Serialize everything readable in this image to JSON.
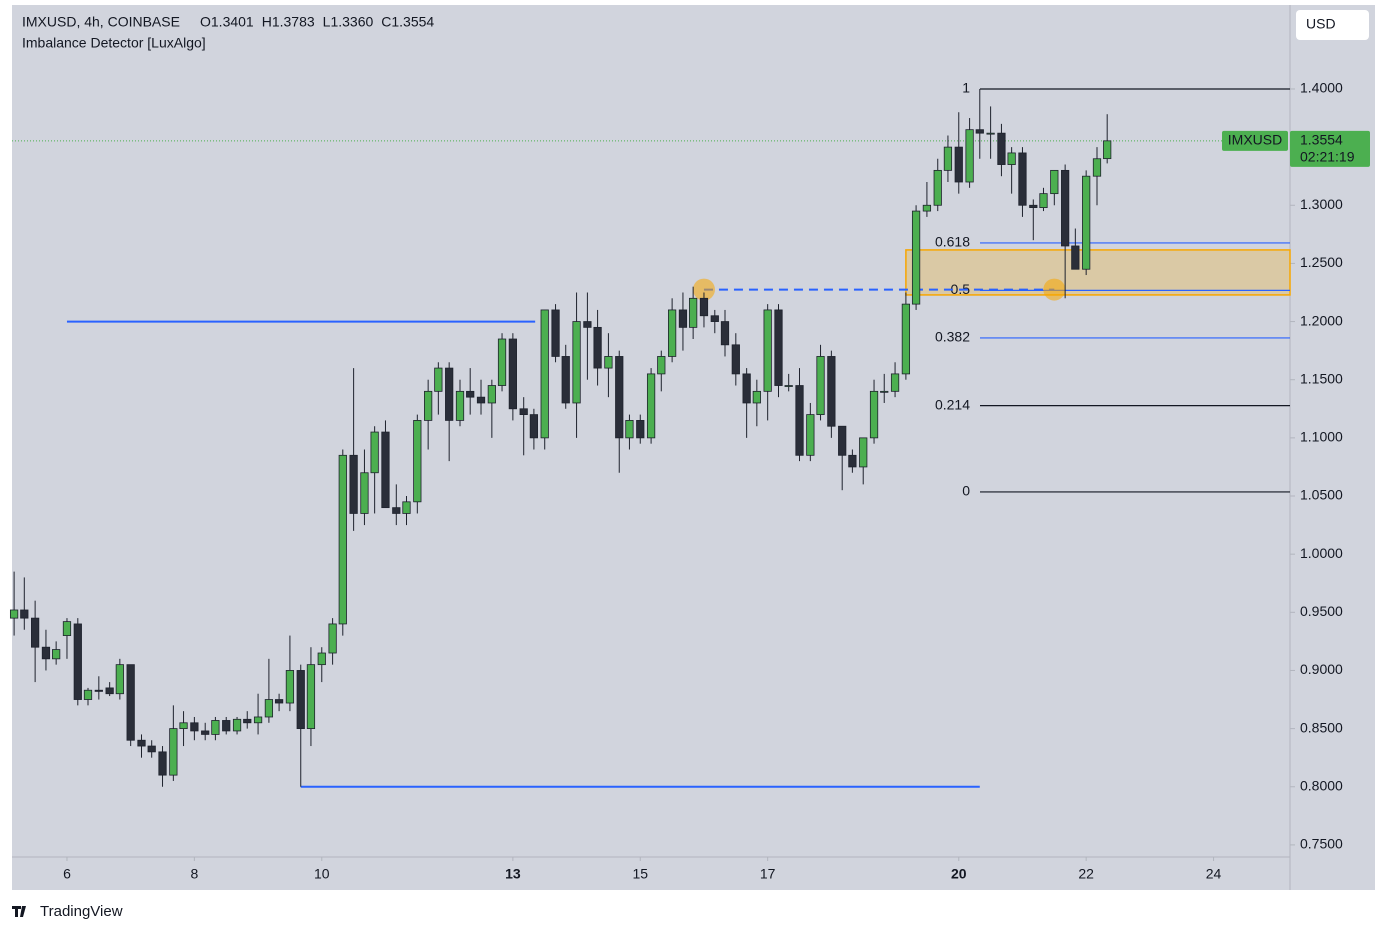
{
  "chart_data": {
    "type": "candlestick",
    "header": {
      "symbol": "IMXUSD, 4h, COINBASE",
      "ohlc": [
        "O1.3401",
        "H1.3783",
        "L1.3360",
        "C1.3554"
      ],
      "indicator": "Imbalance Detector [LuxAlgo]"
    },
    "currency": "USD",
    "last_price": {
      "name": "IMXUSD",
      "countdown": "02:21:19",
      "color": "#4caf50"
    },
    "footer": "TradingView",
    "up_color": "#4caf50",
    "down_color": "#2a2e39",
    "x": [
      5.17,
      5.33,
      5.5,
      5.67,
      5.83,
      6,
      6.17,
      6.33,
      6.5,
      6.67,
      6.83,
      7,
      7.17,
      7.33,
      7.5,
      7.67,
      7.83,
      8,
      8.17,
      8.33,
      8.5,
      8.67,
      8.83,
      9,
      9.17,
      9.33,
      9.5,
      9.67,
      9.83,
      10,
      10.17,
      10.33,
      10.5,
      10.67,
      10.83,
      11,
      11.17,
      11.33,
      11.5,
      11.67,
      11.83,
      12,
      12.17,
      12.33,
      12.5,
      12.67,
      12.83,
      13,
      13.17,
      13.33,
      13.5,
      13.67,
      13.83,
      14,
      14.17,
      14.33,
      14.5,
      14.67,
      14.83,
      15,
      15.17,
      15.33,
      15.5,
      15.67,
      15.83,
      16,
      16.17,
      16.33,
      16.5,
      16.67,
      16.83,
      17,
      17.17,
      17.33,
      17.5,
      17.67,
      17.83,
      18,
      18.17,
      18.33,
      18.5,
      18.67,
      18.83,
      19,
      19.17,
      19.33,
      19.5,
      19.67,
      19.83,
      20,
      20.17,
      20.33,
      20.5,
      20.67,
      20.83,
      21,
      21.17,
      21.33,
      21.5,
      21.67,
      21.83,
      22,
      22.17,
      22.33
    ],
    "open": [
      0.945,
      0.952,
      0.945,
      0.92,
      0.91,
      0.93,
      0.94,
      0.875,
      0.883,
      0.885,
      0.88,
      0.905,
      0.84,
      0.835,
      0.83,
      0.81,
      0.85,
      0.855,
      0.848,
      0.845,
      0.857,
      0.848,
      0.858,
      0.855,
      0.86,
      0.875,
      0.872,
      0.9,
      0.85,
      0.905,
      0.915,
      0.94,
      1.085,
      1.035,
      1.07,
      1.105,
      1.04,
      1.035,
      1.045,
      1.115,
      1.14,
      1.16,
      1.115,
      1.14,
      1.135,
      1.13,
      1.145,
      1.185,
      1.125,
      1.12,
      1.1,
      1.21,
      1.17,
      1.13,
      1.2,
      1.195,
      1.16,
      1.17,
      1.1,
      1.115,
      1.1,
      1.155,
      1.17,
      1.21,
      1.195,
      1.22,
      1.205,
      1.2,
      1.18,
      1.155,
      1.13,
      1.14,
      1.21,
      1.145,
      1.145,
      1.085,
      1.12,
      1.17,
      1.11,
      1.085,
      1.075,
      1.1,
      1.14,
      1.14,
      1.155,
      1.215,
      1.295,
      1.3,
      1.33,
      1.35,
      1.32,
      1.365,
      1.362,
      1.362,
      1.335,
      1.345,
      1.3,
      1.298,
      1.31,
      1.33,
      1.265,
      1.245,
      1.325,
      1.3401
    ],
    "high": [
      0.985,
      0.98,
      0.96,
      0.935,
      0.925,
      0.945,
      0.945,
      0.885,
      0.895,
      0.89,
      0.91,
      0.905,
      0.845,
      0.84,
      0.835,
      0.87,
      0.865,
      0.86,
      0.855,
      0.86,
      0.86,
      0.86,
      0.865,
      0.88,
      0.91,
      0.88,
      0.93,
      0.905,
      0.92,
      0.92,
      0.945,
      1.09,
      1.16,
      1.09,
      1.11,
      1.115,
      1.06,
      1.05,
      1.12,
      1.15,
      1.165,
      1.165,
      1.15,
      1.16,
      1.15,
      1.15,
      1.19,
      1.19,
      1.135,
      1.125,
      1.21,
      1.215,
      1.18,
      1.225,
      1.225,
      1.21,
      1.19,
      1.175,
      1.12,
      1.12,
      1.16,
      1.175,
      1.22,
      1.225,
      1.23,
      1.225,
      1.21,
      1.21,
      1.19,
      1.16,
      1.15,
      1.215,
      1.215,
      1.155,
      1.16,
      1.13,
      1.18,
      1.175,
      1.11,
      1.09,
      1.1,
      1.15,
      1.155,
      1.165,
      1.225,
      1.3,
      1.32,
      1.34,
      1.36,
      1.38,
      1.375,
      1.4,
      1.385,
      1.37,
      1.35,
      1.35,
      1.305,
      1.315,
      1.33,
      1.335,
      1.28,
      1.33,
      1.35,
      1.3783
    ],
    "low": [
      0.93,
      0.935,
      0.89,
      0.9,
      0.905,
      0.91,
      0.87,
      0.87,
      0.875,
      0.878,
      0.875,
      0.835,
      0.825,
      0.825,
      0.8,
      0.805,
      0.835,
      0.84,
      0.84,
      0.84,
      0.845,
      0.845,
      0.85,
      0.845,
      0.855,
      0.865,
      0.865,
      0.8,
      0.835,
      0.89,
      0.905,
      0.93,
      1.02,
      1.025,
      1.035,
      1.04,
      1.025,
      1.025,
      1.035,
      1.09,
      1.12,
      1.08,
      1.11,
      1.12,
      1.12,
      1.1,
      1.14,
      1.115,
      1.085,
      1.09,
      1.09,
      1.165,
      1.125,
      1.1,
      1.15,
      1.145,
      1.135,
      1.07,
      1.09,
      1.095,
      1.095,
      1.14,
      1.165,
      1.175,
      1.185,
      1.195,
      1.19,
      1.17,
      1.145,
      1.1,
      1.11,
      1.115,
      1.135,
      1.14,
      1.08,
      1.08,
      1.115,
      1.1,
      1.055,
      1.07,
      1.06,
      1.095,
      1.13,
      1.135,
      1.15,
      1.21,
      1.29,
      1.295,
      1.32,
      1.31,
      1.315,
      1.34,
      1.34,
      1.325,
      1.31,
      1.29,
      1.27,
      1.295,
      1.3,
      1.22,
      1.245,
      1.24,
      1.3,
      1.336
    ],
    "close": [
      0.952,
      0.945,
      0.92,
      0.91,
      0.918,
      0.942,
      0.875,
      0.883,
      0.882,
      0.88,
      0.905,
      0.84,
      0.835,
      0.83,
      0.81,
      0.85,
      0.855,
      0.848,
      0.845,
      0.857,
      0.848,
      0.858,
      0.855,
      0.86,
      0.875,
      0.872,
      0.9,
      0.85,
      0.905,
      0.915,
      0.94,
      1.085,
      1.035,
      1.07,
      1.105,
      1.04,
      1.035,
      1.045,
      1.115,
      1.14,
      1.16,
      1.115,
      1.14,
      1.135,
      1.13,
      1.145,
      1.185,
      1.125,
      1.12,
      1.1,
      1.21,
      1.17,
      1.13,
      1.2,
      1.195,
      1.16,
      1.17,
      1.1,
      1.115,
      1.1,
      1.155,
      1.17,
      1.21,
      1.195,
      1.22,
      1.205,
      1.2,
      1.18,
      1.155,
      1.13,
      1.14,
      1.21,
      1.145,
      1.145,
      1.085,
      1.12,
      1.17,
      1.11,
      1.085,
      1.075,
      1.1,
      1.14,
      1.14,
      1.155,
      1.215,
      1.295,
      1.3,
      1.33,
      1.35,
      1.32,
      1.365,
      1.362,
      1.362,
      1.335,
      1.345,
      1.3,
      1.298,
      1.31,
      1.33,
      1.265,
      1.245,
      1.325,
      1.34,
      1.3554
    ],
    "xlim": [
      5.137,
      25.2
    ],
    "xticks": [
      6,
      8,
      10,
      13,
      15,
      17,
      20,
      22,
      24
    ],
    "bold_xticks": [
      13,
      20
    ],
    "ylim": [
      0.7396,
      1.4722
    ],
    "yticks": [
      {
        "value": 1.4,
        "label": "1.4000"
      },
      {
        "value": 1.35,
        "label": "1.3500"
      },
      {
        "value": 1.3,
        "label": "1.3000"
      },
      {
        "value": 1.25,
        "label": "1.2500"
      },
      {
        "value": 1.2,
        "label": "1.2000"
      },
      {
        "value": 1.15,
        "label": "1.1500"
      },
      {
        "value": 1.1,
        "label": "1.1000"
      },
      {
        "value": 1.05,
        "label": "1.0500"
      },
      {
        "value": 1.0,
        "label": "1.0000"
      },
      {
        "value": 0.95,
        "label": "0.9500"
      },
      {
        "value": 0.9,
        "label": "0.9000"
      },
      {
        "value": 0.85,
        "label": "0.8500"
      },
      {
        "value": 0.8,
        "label": "0.8000"
      },
      {
        "value": 0.75,
        "label": "0.7500"
      }
    ],
    "grid": false,
    "fib_levels": [
      {
        "label": "1",
        "value": 1.4,
        "color": "#131722"
      },
      {
        "label": "0.618",
        "value": 1.2676,
        "color": "#2962ff"
      },
      {
        "label": "0.5",
        "value": 1.2268,
        "color": "#2962ff"
      },
      {
        "label": "0.382",
        "value": 1.1859,
        "color": "#2962ff"
      },
      {
        "label": "0.214",
        "value": 1.1277,
        "color": "#131722"
      },
      {
        "label": "0",
        "value": 1.0535,
        "color": "#131722"
      }
    ],
    "swing_levels": [
      {
        "value": 1.2,
        "x": [
          6,
          13.35
        ],
        "color": "#2962ff"
      },
      {
        "value": 0.8,
        "x": [
          9.67,
          20.33
        ],
        "color": "#2962ff"
      }
    ],
    "zone": {
      "ylim": [
        1.2229,
        1.2616
      ],
      "x": 19.17,
      "color": "#f7a600"
    },
    "sweep": {
      "value": 1.2275,
      "x": [
        16,
        21.5
      ],
      "color": "#2962ff"
    }
  }
}
